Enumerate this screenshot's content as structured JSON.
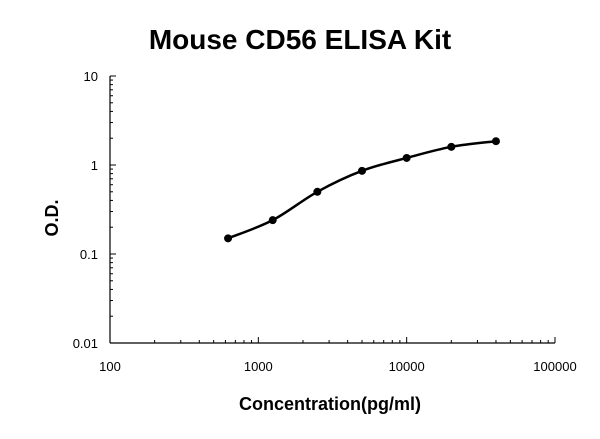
{
  "chart_data": {
    "type": "scatter",
    "title": "Mouse CD56 ELISA Kit",
    "xlabel": "Concentration(pg/ml)",
    "ylabel": "O.D.",
    "x_scale": "log",
    "y_scale": "log",
    "xlim": [
      100,
      100000
    ],
    "ylim": [
      0.01,
      10
    ],
    "x_ticks": [
      100,
      1000,
      10000,
      100000
    ],
    "y_ticks": [
      0.01,
      0.1,
      1,
      10
    ],
    "x_tick_labels": [
      "100",
      "1000",
      "10000",
      "100000"
    ],
    "y_tick_labels": [
      "0.01",
      "0.1",
      "1",
      "10"
    ],
    "grid": false,
    "legend": "none",
    "series": [
      {
        "x": [
          625,
          1250,
          2500,
          5000,
          10000,
          20000,
          40000
        ],
        "y": [
          0.15,
          0.24,
          0.5,
          0.86,
          1.2,
          1.6,
          1.85
        ],
        "marker_color": "#000000",
        "fit_curve": true
      }
    ]
  }
}
